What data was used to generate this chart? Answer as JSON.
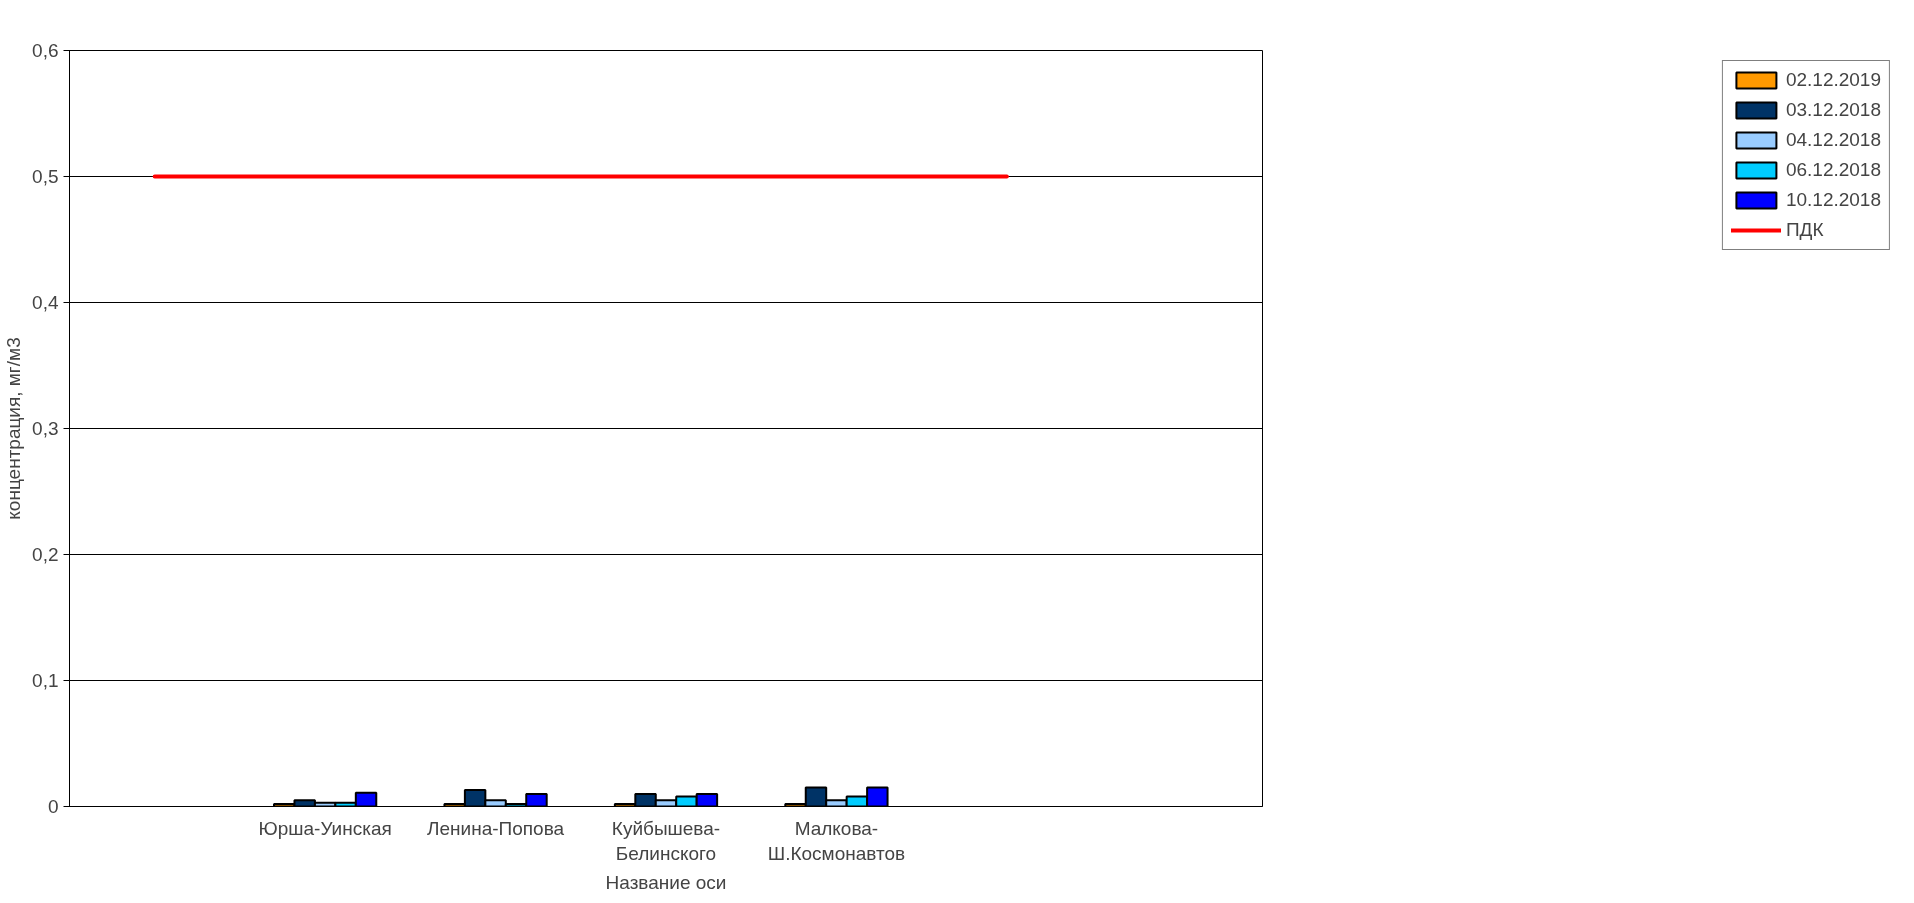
{
  "chart_data": {
    "type": "bar",
    "xlabel": "Название оси",
    "ylabel": "концентрация, мг/м3",
    "categories": [
      null,
      "Юрша-Уинская",
      "Ленина-Попова",
      "Куйбышева-Белинского",
      "Малкова-Ш.Космонавтов",
      null,
      null
    ],
    "series": [
      {
        "name": "02.12.2019",
        "color": "#ff9900",
        "values": [
          null,
          0.002,
          0.002,
          0.002,
          0.002,
          null,
          null
        ]
      },
      {
        "name": "03.12.2018",
        "color": "#003366",
        "values": [
          null,
          0.005,
          0.013,
          0.01,
          0.015,
          null,
          null
        ]
      },
      {
        "name": "04.12.2018",
        "color": "#99ccff",
        "values": [
          null,
          0.003,
          0.005,
          0.005,
          0.005,
          null,
          null
        ]
      },
      {
        "name": "06.12.2018",
        "color": "#00ccff",
        "values": [
          null,
          0.003,
          0.002,
          0.008,
          0.008,
          null,
          null
        ]
      },
      {
        "name": "10.12.2018",
        "color": "#0000ff",
        "values": [
          null,
          0.011,
          0.01,
          0.01,
          0.015,
          null,
          null
        ]
      },
      {
        "name": "ПДК",
        "type": "line",
        "color": "#ff0000",
        "values": [
          0.5,
          0.5,
          0.5,
          0.5,
          0.5,
          0.5,
          null
        ]
      }
    ],
    "ylim": [
      0,
      0.6
    ],
    "yticks": [
      0,
      {
        "value": 0.1,
        "label": "0,1"
      },
      {
        "value": 0.2,
        "label": "0,2"
      },
      {
        "value": 0.3,
        "label": "0,3"
      },
      {
        "value": 0.4,
        "label": "0,4"
      },
      {
        "value": 0.5,
        "label": "0,5"
      },
      {
        "value": 0.6,
        "label": "0,6"
      }
    ],
    "grid": "y",
    "legend": "right"
  }
}
